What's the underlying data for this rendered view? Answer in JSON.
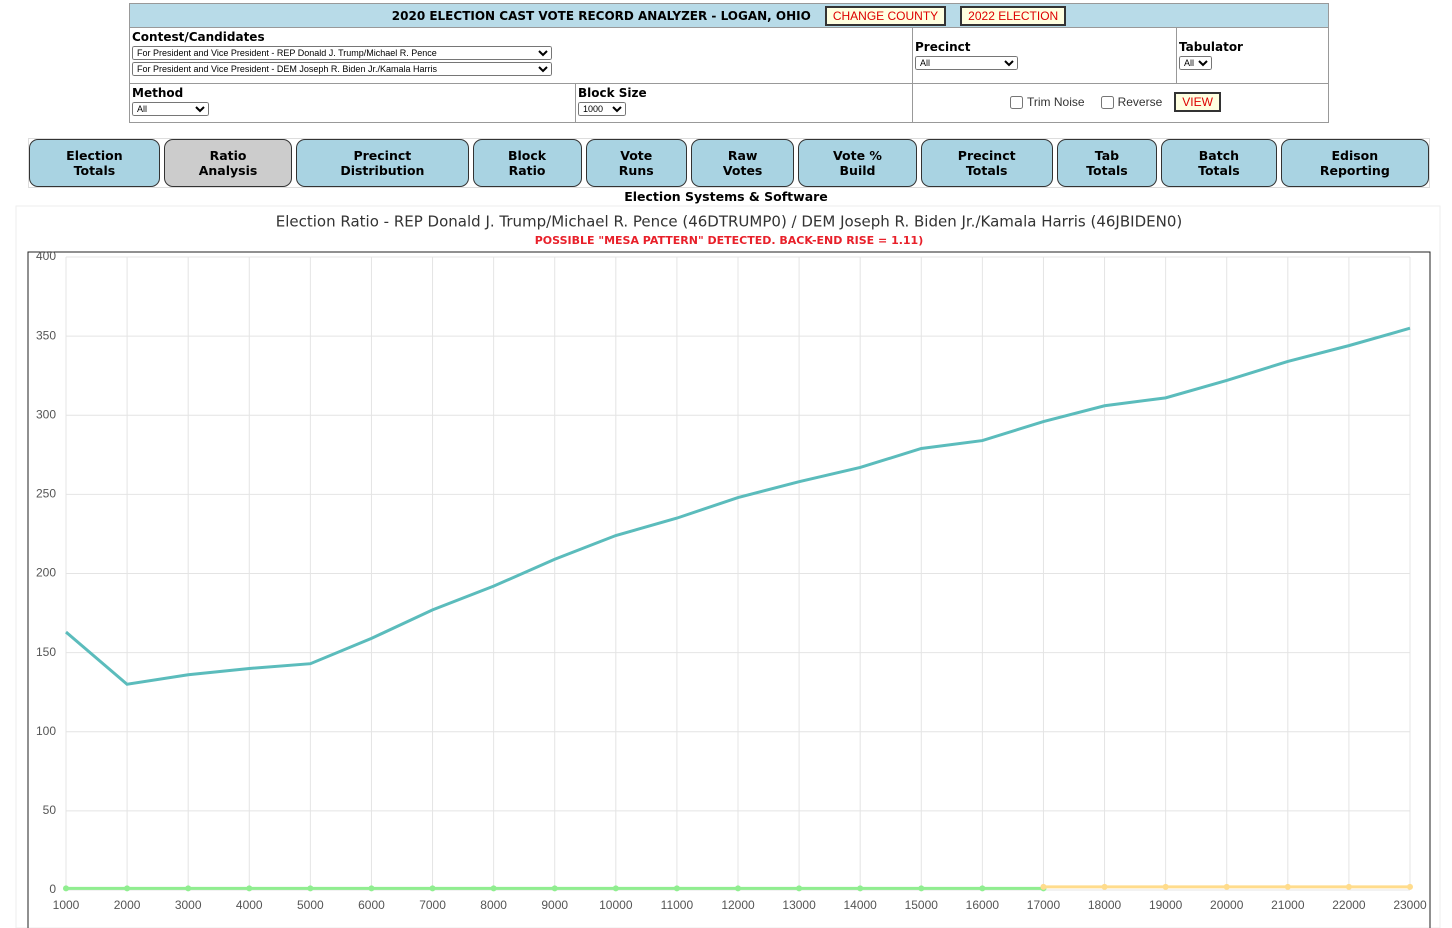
{
  "header": {
    "title": "2020 ELECTION CAST VOTE RECORD ANALYZER - LOGAN, OHIO",
    "buttons": [
      "CHANGE COUNTY",
      "2022 ELECTION"
    ]
  },
  "controls": {
    "contest_label": "Contest/Candidates",
    "contest_options": [
      "For President and Vice President - REP Donald J. Trump/Michael R. Pence",
      "For President and Vice President - DEM Joseph R. Biden Jr./Kamala Harris"
    ],
    "precinct_label": "Precinct",
    "precinct_value": "All",
    "tabulator_label": "Tabulator",
    "tabulator_value": "All",
    "method_label": "Method",
    "method_value": "All",
    "block_size_label": "Block Size",
    "block_size_value": "1000",
    "trim_noise": "Trim Noise",
    "reverse": "Reverse",
    "view": "VIEW"
  },
  "tabs": [
    "Election Totals",
    "Ratio Analysis",
    "Precinct Distribution",
    "Block Ratio",
    "Vote Runs",
    "Raw Votes",
    "Vote % Build",
    "Precinct Totals",
    "Tab Totals",
    "Batch Totals",
    "Edison Reporting"
  ],
  "active_tab": "Ratio Analysis",
  "vendor": "Election Systems & Software",
  "chart_data": {
    "type": "line",
    "title": "Election Ratio - REP Donald J. Trump/Michael R. Pence (46DTRUMP0) / DEM Joseph R. Biden Jr./Kamala Harris (46JBIDEN0)",
    "subtitle": "POSSIBLE \"MESA PATTERN\" DETECTED. BACK-END RISE = 1.11)",
    "x": [
      1000,
      2000,
      3000,
      4000,
      5000,
      6000,
      7000,
      8000,
      9000,
      10000,
      11000,
      12000,
      13000,
      14000,
      15000,
      16000,
      17000,
      18000,
      19000,
      20000,
      21000,
      22000,
      23000
    ],
    "xlim": [
      1000,
      23000
    ],
    "xticks": [
      1000,
      2000,
      3000,
      4000,
      5000,
      6000,
      7000,
      8000,
      9000,
      10000,
      11000,
      12000,
      13000,
      14000,
      15000,
      16000,
      17000,
      18000,
      19000,
      20000,
      21000,
      22000,
      23000
    ],
    "ylim": [
      0,
      400
    ],
    "yticks": [
      0,
      50,
      100,
      150,
      200,
      250,
      300,
      350,
      400
    ],
    "grid": true,
    "series": [
      {
        "color": "#5bbcbc",
        "points": false,
        "values": [
          163,
          130,
          136,
          140,
          143,
          159,
          177,
          192,
          209,
          224,
          235,
          248,
          258,
          267,
          279,
          284,
          296,
          306,
          311,
          322,
          334,
          344,
          355
        ]
      },
      {
        "color": "#90ee90",
        "points": true,
        "values": [
          1,
          1,
          1,
          1,
          1,
          1,
          1,
          1,
          1,
          1,
          1,
          1,
          1,
          1,
          1,
          1,
          1,
          null,
          null,
          null,
          null,
          null,
          null
        ]
      },
      {
        "color": "#ffdc8c",
        "points": true,
        "values": [
          null,
          null,
          null,
          null,
          null,
          null,
          null,
          null,
          null,
          null,
          null,
          null,
          null,
          null,
          null,
          null,
          2,
          2,
          2,
          2,
          2,
          2,
          2
        ]
      }
    ]
  }
}
